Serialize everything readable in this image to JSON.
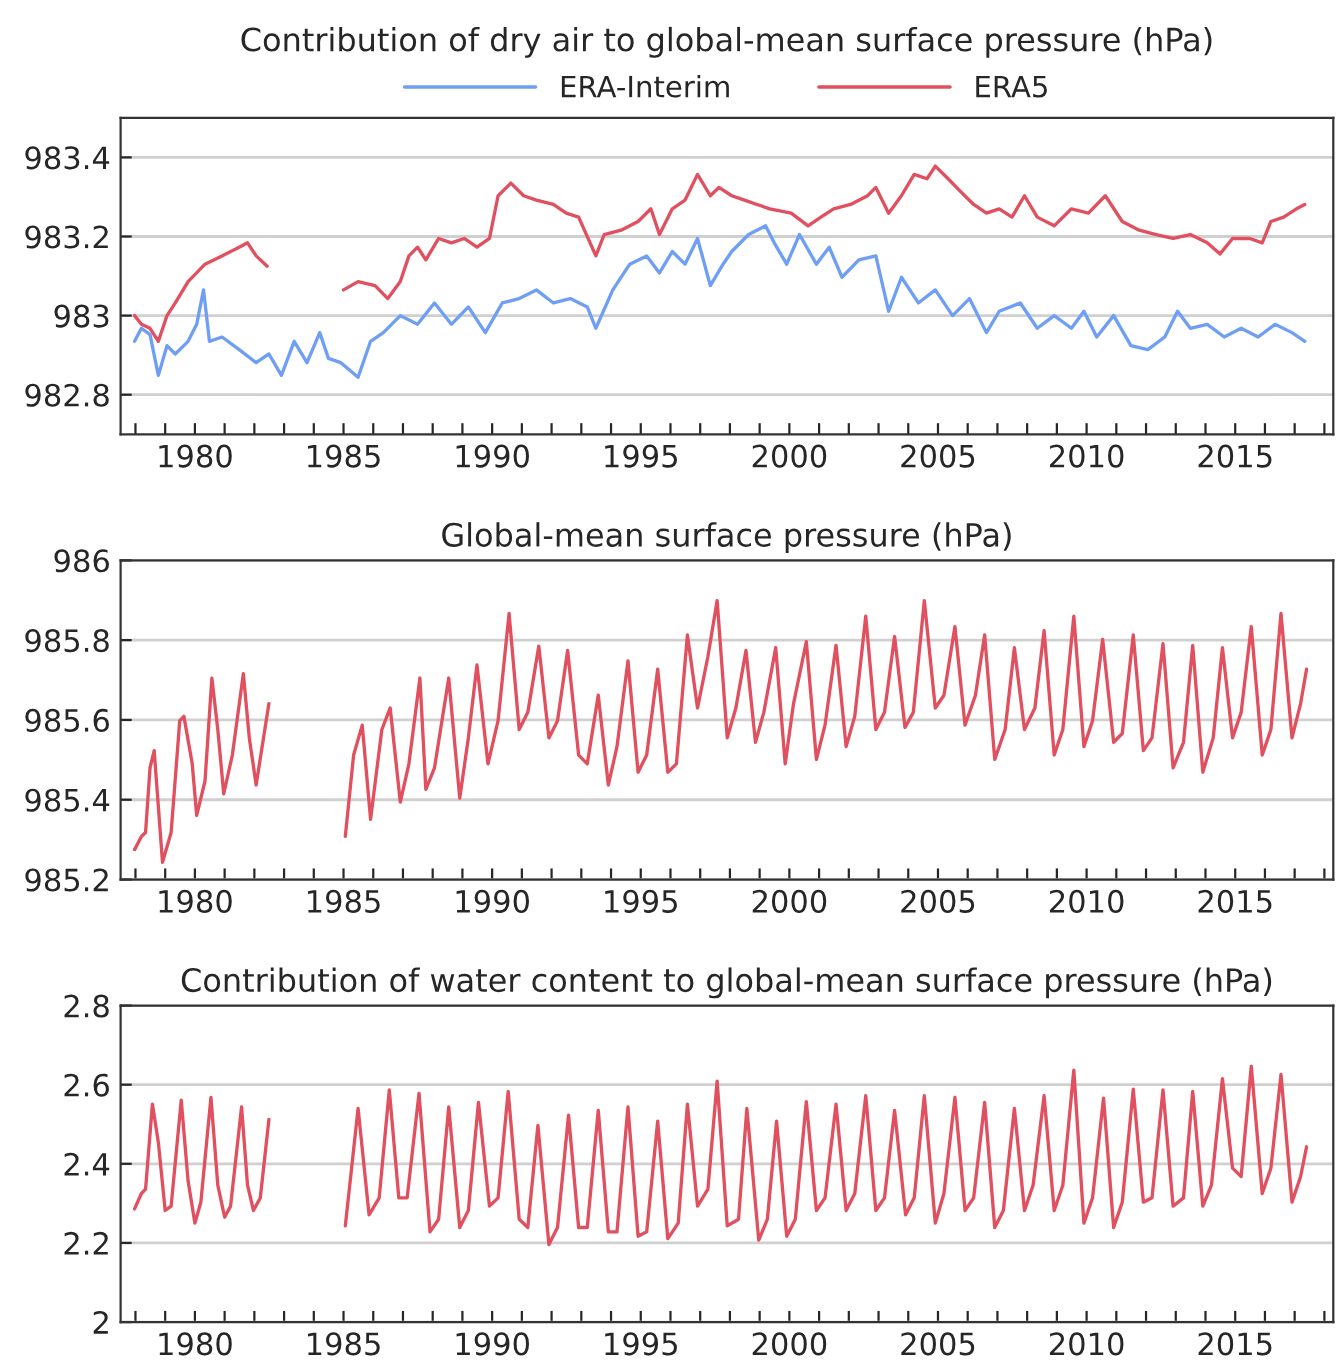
{
  "chart_data": [
    {
      "type": "line",
      "title": "Contribution of dry air to global-mean surface pressure (hPa)",
      "legend": "top",
      "grid": "y",
      "xlim": [
        1977.5,
        2018.3
      ],
      "ylim": [
        982.7,
        983.5
      ],
      "yticks": [
        982.8,
        983,
        983.2,
        983.4
      ],
      "xticks": [
        {
          "value": 1978,
          "label": null
        },
        {
          "value": 1979,
          "label": null
        },
        1980,
        {
          "value": 1981,
          "label": null
        },
        {
          "value": 1982,
          "label": null
        },
        {
          "value": 1983,
          "label": null
        },
        {
          "value": 1984,
          "label": null
        },
        1985,
        {
          "value": 1986,
          "label": null
        },
        {
          "value": 1987,
          "label": null
        },
        {
          "value": 1988,
          "label": null
        },
        {
          "value": 1989,
          "label": null
        },
        1990,
        {
          "value": 1991,
          "label": null
        },
        {
          "value": 1992,
          "label": null
        },
        {
          "value": 1993,
          "label": null
        },
        {
          "value": 1994,
          "label": null
        },
        1995,
        {
          "value": 1996,
          "label": null
        },
        {
          "value": 1997,
          "label": null
        },
        {
          "value": 1998,
          "label": null
        },
        {
          "value": 1999,
          "label": null
        },
        2000,
        {
          "value": 2001,
          "label": null
        },
        {
          "value": 2002,
          "label": null
        },
        {
          "value": 2003,
          "label": null
        },
        {
          "value": 2004,
          "label": null
        },
        2005,
        {
          "value": 2006,
          "label": null
        },
        {
          "value": 2007,
          "label": null
        },
        {
          "value": 2008,
          "label": null
        },
        {
          "value": 2009,
          "label": null
        },
        2010,
        {
          "value": 2011,
          "label": null
        },
        {
          "value": 2012,
          "label": null
        },
        {
          "value": 2013,
          "label": null
        },
        {
          "value": 2014,
          "label": null
        },
        2015,
        {
          "value": 2016,
          "label": null
        },
        {
          "value": 2017,
          "label": null
        },
        {
          "value": 2018,
          "label": null
        }
      ],
      "series": [
        {
          "name": "ERA-Interim",
          "color": "#6f9ff5",
          "x": [
            1977.97,
            1978.2,
            1978.49,
            1978.77,
            1979.06,
            1979.34,
            1979.77,
            1980.06,
            1980.29,
            1980.49,
            1980.91,
            1981.49,
            1982.06,
            1982.49,
            1982.91,
            1983.34,
            1983.77,
            1984.2,
            1984.49,
            1984.91,
            1985.49,
            1985.91,
            1986.34,
            1986.91,
            1987.49,
            1988.06,
            1988.63,
            1989.2,
            1989.77,
            1990.34,
            1990.91,
            1991.49,
            1992.06,
            1992.63,
            1993.2,
            1993.49,
            1994.06,
            1994.63,
            1995.2,
            1995.63,
            1996.06,
            1996.49,
            1996.91,
            1997.34,
            1997.77,
            1998.06,
            1998.63,
            1999.2,
            1999.49,
            1999.91,
            2000.34,
            2000.91,
            2001.34,
            2001.77,
            2002.34,
            2002.91,
            2003.34,
            2003.77,
            2004.34,
            2004.91,
            2005.49,
            2006.06,
            2006.63,
            2007.06,
            2007.77,
            2008.34,
            2008.91,
            2009.49,
            2009.91,
            2010.34,
            2010.91,
            2011.49,
            2012.06,
            2012.63,
            2013.06,
            2013.49,
            2014.06,
            2014.63,
            2015.2,
            2015.77,
            2016.34,
            2016.91,
            2017.34
          ],
          "values": [
            982.935,
            982.968,
            982.952,
            982.849,
            982.924,
            982.903,
            982.935,
            982.978,
            983.065,
            982.935,
            982.946,
            982.914,
            982.881,
            982.903,
            982.849,
            982.935,
            982.881,
            982.957,
            982.892,
            982.881,
            982.844,
            982.935,
            982.957,
            983.0,
            982.978,
            983.032,
            982.978,
            983.022,
            982.957,
            983.032,
            983.043,
            983.065,
            983.032,
            983.043,
            983.022,
            982.968,
            983.065,
            983.13,
            983.151,
            983.108,
            983.162,
            983.13,
            983.195,
            983.076,
            983.13,
            983.162,
            983.205,
            983.227,
            983.184,
            983.13,
            983.205,
            983.13,
            983.173,
            983.097,
            983.141,
            983.151,
            983.011,
            983.097,
            983.032,
            983.065,
            983.0,
            983.043,
            982.957,
            983.011,
            983.032,
            982.968,
            983.0,
            982.968,
            983.011,
            982.946,
            983.0,
            982.924,
            982.914,
            982.946,
            983.011,
            982.968,
            982.978,
            982.946,
            982.968,
            982.946,
            982.978,
            982.957,
            982.935
          ]
        },
        {
          "name": "ERA5",
          "color": "#e0505f",
          "x": [
            1977.97,
            1978.2,
            1978.49,
            1978.77,
            1979.06,
            1979.34,
            1979.77,
            1980.34,
            1980.91,
            1981.49,
            1981.77,
            1982.06,
            1982.43,
            1983.7,
            1985.0,
            1985.49,
            1986.06,
            1986.49,
            1986.91,
            1987.2,
            1987.49,
            1987.77,
            1988.2,
            1988.63,
            1989.06,
            1989.49,
            1989.91,
            1990.2,
            1990.63,
            1991.06,
            1991.49,
            1992.06,
            1992.49,
            1992.91,
            1993.49,
            1993.77,
            1994.34,
            1994.91,
            1995.34,
            1995.63,
            1996.06,
            1996.49,
            1996.91,
            1997.34,
            1997.63,
            1998.06,
            1998.49,
            1998.91,
            1999.34,
            2000.06,
            2000.63,
            2001.06,
            2001.49,
            2002.06,
            2002.63,
            2002.91,
            2003.34,
            2003.77,
            2004.2,
            2004.63,
            2004.91,
            2005.34,
            2005.77,
            2006.2,
            2006.63,
            2007.06,
            2007.49,
            2007.91,
            2008.34,
            2008.91,
            2009.49,
            2010.06,
            2010.63,
            2011.2,
            2011.77,
            2012.34,
            2012.91,
            2013.49,
            2014.06,
            2014.49,
            2014.91,
            2015.49,
            2015.91,
            2016.2,
            2016.63,
            2017.06,
            2017.34
          ],
          "values": [
            983.0,
            982.978,
            982.968,
            982.935,
            983.0,
            983.032,
            983.086,
            983.13,
            983.151,
            983.173,
            983.184,
            983.151,
            983.125,
            null,
            983.065,
            983.086,
            983.076,
            983.043,
            983.086,
            983.151,
            983.173,
            983.141,
            983.195,
            983.184,
            983.195,
            983.173,
            983.195,
            983.303,
            983.335,
            983.303,
            983.292,
            983.281,
            983.259,
            983.249,
            983.151,
            983.205,
            983.216,
            983.238,
            983.27,
            983.205,
            983.27,
            983.292,
            983.357,
            983.303,
            983.324,
            983.303,
            983.292,
            983.281,
            983.27,
            983.259,
            983.227,
            983.249,
            983.27,
            983.281,
            983.303,
            983.324,
            983.259,
            983.303,
            983.357,
            983.346,
            983.378,
            983.346,
            983.313,
            983.281,
            983.259,
            983.27,
            983.249,
            983.303,
            983.249,
            983.227,
            983.27,
            983.259,
            983.303,
            983.238,
            983.216,
            983.205,
            983.195,
            983.205,
            983.184,
            983.156,
            983.195,
            983.195,
            983.184,
            983.238,
            983.249,
            983.27,
            983.281
          ]
        }
      ]
    },
    {
      "type": "line",
      "title": "Global-mean surface pressure (hPa)",
      "grid": "y",
      "xlim": [
        1977.5,
        2018.3
      ],
      "ylim": [
        985.2,
        986
      ],
      "yticks": [
        985.2,
        985.4,
        985.6,
        985.8,
        986
      ],
      "xticks": [
        {
          "value": 1978,
          "label": null
        },
        {
          "value": 1979,
          "label": null
        },
        1980,
        {
          "value": 1981,
          "label": null
        },
        {
          "value": 1982,
          "label": null
        },
        {
          "value": 1983,
          "label": null
        },
        {
          "value": 1984,
          "label": null
        },
        1985,
        {
          "value": 1986,
          "label": null
        },
        {
          "value": 1987,
          "label": null
        },
        {
          "value": 1988,
          "label": null
        },
        {
          "value": 1989,
          "label": null
        },
        1990,
        {
          "value": 1991,
          "label": null
        },
        {
          "value": 1992,
          "label": null
        },
        {
          "value": 1993,
          "label": null
        },
        {
          "value": 1994,
          "label": null
        },
        1995,
        {
          "value": 1996,
          "label": null
        },
        {
          "value": 1997,
          "label": null
        },
        {
          "value": 1998,
          "label": null
        },
        {
          "value": 1999,
          "label": null
        },
        2000,
        {
          "value": 2001,
          "label": null
        },
        {
          "value": 2002,
          "label": null
        },
        {
          "value": 2003,
          "label": null
        },
        {
          "value": 2004,
          "label": null
        },
        2005,
        {
          "value": 2006,
          "label": null
        },
        {
          "value": 2007,
          "label": null
        },
        {
          "value": 2008,
          "label": null
        },
        {
          "value": 2009,
          "label": null
        },
        2010,
        {
          "value": 2011,
          "label": null
        },
        {
          "value": 2012,
          "label": null
        },
        {
          "value": 2013,
          "label": null
        },
        {
          "value": 2014,
          "label": null
        },
        2015,
        {
          "value": 2016,
          "label": null
        },
        {
          "value": 2017,
          "label": null
        },
        {
          "value": 2018,
          "label": null
        }
      ],
      "series": [
        {
          "color": "#e0505f",
          "x": [
            1977.97,
            1978.2,
            1978.34,
            1978.49,
            1978.63,
            1978.77,
            1978.91,
            1979.2,
            1979.49,
            1979.63,
            1979.91,
            1980.06,
            1980.34,
            1980.57,
            1980.77,
            1980.97,
            1981.26,
            1981.63,
            1981.83,
            1982.06,
            1982.49,
            1983.7,
            1985.06,
            1985.34,
            1985.63,
            1985.91,
            1986.29,
            1986.57,
            1986.91,
            1987.2,
            1987.57,
            1987.77,
            1988.06,
            1988.54,
            1988.91,
            1989.2,
            1989.49,
            1989.86,
            1990.2,
            1990.57,
            1990.91,
            1991.2,
            1991.57,
            1991.91,
            1992.2,
            1992.54,
            1992.91,
            1993.2,
            1993.57,
            1993.91,
            1994.2,
            1994.57,
            1994.91,
            1995.2,
            1995.57,
            1995.91,
            1996.2,
            1996.57,
            1996.91,
            1997.26,
            1997.57,
            1997.91,
            1998.2,
            1998.54,
            1998.86,
            1999.14,
            1999.54,
            1999.86,
            2000.14,
            2000.57,
            2000.91,
            2001.2,
            2001.57,
            2001.91,
            2002.2,
            2002.57,
            2002.91,
            2003.2,
            2003.54,
            2003.89,
            2004.17,
            2004.54,
            2004.91,
            2005.2,
            2005.57,
            2005.91,
            2006.26,
            2006.57,
            2006.91,
            2007.26,
            2007.57,
            2007.91,
            2008.26,
            2008.57,
            2008.91,
            2009.2,
            2009.57,
            2009.91,
            2010.2,
            2010.54,
            2010.91,
            2011.2,
            2011.57,
            2011.91,
            2012.2,
            2012.57,
            2012.91,
            2013.26,
            2013.57,
            2013.91,
            2014.26,
            2014.57,
            2014.91,
            2015.2,
            2015.54,
            2015.91,
            2016.2,
            2016.54,
            2016.91,
            2017.2,
            2017.4
          ],
          "values": [
            985.275,
            985.308,
            985.318,
            985.48,
            985.523,
            985.383,
            985.243,
            985.318,
            985.598,
            985.609,
            985.49,
            985.361,
            985.447,
            985.705,
            985.576,
            985.415,
            985.512,
            985.716,
            985.555,
            985.437,
            985.641,
            null,
            985.308,
            985.512,
            985.587,
            985.351,
            985.576,
            985.63,
            985.394,
            985.49,
            985.705,
            985.426,
            985.48,
            985.705,
            985.404,
            985.555,
            985.738,
            985.49,
            985.598,
            985.867,
            985.576,
            985.619,
            985.785,
            985.555,
            985.598,
            985.774,
            985.512,
            985.49,
            985.662,
            985.437,
            985.533,
            985.748,
            985.469,
            985.512,
            985.727,
            985.469,
            985.49,
            985.813,
            985.63,
            985.759,
            985.899,
            985.555,
            985.63,
            985.774,
            985.544,
            985.619,
            985.781,
            985.49,
            985.641,
            985.796,
            985.501,
            985.587,
            985.787,
            985.533,
            985.609,
            985.86,
            985.576,
            985.619,
            985.809,
            985.581,
            985.619,
            985.899,
            985.63,
            985.662,
            985.834,
            985.587,
            985.662,
            985.813,
            985.501,
            985.576,
            985.781,
            985.576,
            985.63,
            985.824,
            985.512,
            985.576,
            985.86,
            985.533,
            985.598,
            985.802,
            985.544,
            985.566,
            985.813,
            985.523,
            985.555,
            985.791,
            985.48,
            985.544,
            985.787,
            985.469,
            985.555,
            985.781,
            985.555,
            985.619,
            985.834,
            985.512,
            985.576,
            985.867,
            985.555,
            985.641,
            985.727
          ]
        }
      ]
    },
    {
      "type": "line",
      "title": "Contribution of water content to global-mean surface pressure (hPa)",
      "grid": "y",
      "xlim": [
        1977.5,
        2018.3
      ],
      "ylim": [
        2,
        2.8
      ],
      "yticks": [
        2,
        2.2,
        2.4,
        2.6,
        2.8
      ],
      "xticks": [
        {
          "value": 1978,
          "label": null
        },
        {
          "value": 1979,
          "label": null
        },
        1980,
        {
          "value": 1981,
          "label": null
        },
        {
          "value": 1982,
          "label": null
        },
        {
          "value": 1983,
          "label": null
        },
        {
          "value": 1984,
          "label": null
        },
        1985,
        {
          "value": 1986,
          "label": null
        },
        {
          "value": 1987,
          "label": null
        },
        {
          "value": 1988,
          "label": null
        },
        {
          "value": 1989,
          "label": null
        },
        1990,
        {
          "value": 1991,
          "label": null
        },
        {
          "value": 1992,
          "label": null
        },
        {
          "value": 1993,
          "label": null
        },
        {
          "value": 1994,
          "label": null
        },
        1995,
        {
          "value": 1996,
          "label": null
        },
        {
          "value": 1997,
          "label": null
        },
        {
          "value": 1998,
          "label": null
        },
        {
          "value": 1999,
          "label": null
        },
        2000,
        {
          "value": 2001,
          "label": null
        },
        {
          "value": 2002,
          "label": null
        },
        {
          "value": 2003,
          "label": null
        },
        {
          "value": 2004,
          "label": null
        },
        2005,
        {
          "value": 2006,
          "label": null
        },
        {
          "value": 2007,
          "label": null
        },
        {
          "value": 2008,
          "label": null
        },
        {
          "value": 2009,
          "label": null
        },
        2010,
        {
          "value": 2011,
          "label": null
        },
        {
          "value": 2012,
          "label": null
        },
        {
          "value": 2013,
          "label": null
        },
        {
          "value": 2014,
          "label": null
        },
        2015,
        {
          "value": 2016,
          "label": null
        },
        {
          "value": 2017,
          "label": null
        },
        {
          "value": 2018,
          "label": null
        }
      ],
      "series": [
        {
          "color": "#e0505f",
          "x": [
            1977.97,
            1978.2,
            1978.34,
            1978.57,
            1978.77,
            1979.0,
            1979.2,
            1979.54,
            1979.77,
            1980.0,
            1980.2,
            1980.54,
            1980.77,
            1981.0,
            1981.2,
            1981.57,
            1981.77,
            1981.97,
            1982.2,
            1982.49,
            1983.7,
            1985.06,
            1985.49,
            1985.86,
            1986.2,
            1986.54,
            1986.86,
            1987.14,
            1987.54,
            1987.91,
            1988.2,
            1988.54,
            1988.91,
            1989.2,
            1989.54,
            1989.91,
            1990.2,
            1990.54,
            1990.91,
            1991.2,
            1991.54,
            1991.91,
            1992.2,
            1992.57,
            1992.91,
            1993.2,
            1993.57,
            1993.91,
            1994.2,
            1994.57,
            1994.91,
            1995.2,
            1995.57,
            1995.91,
            1996.26,
            1996.57,
            1996.91,
            1997.26,
            1997.57,
            1997.91,
            1998.29,
            1998.57,
            1998.97,
            1999.26,
            1999.57,
            1999.91,
            2000.2,
            2000.57,
            2000.91,
            2001.2,
            2001.57,
            2001.91,
            2002.2,
            2002.57,
            2002.91,
            2003.2,
            2003.54,
            2003.91,
            2004.2,
            2004.54,
            2004.91,
            2005.2,
            2005.57,
            2005.91,
            2006.2,
            2006.57,
            2006.91,
            2007.2,
            2007.57,
            2007.91,
            2008.2,
            2008.57,
            2008.91,
            2009.2,
            2009.57,
            2009.91,
            2010.2,
            2010.57,
            2010.91,
            2011.2,
            2011.57,
            2011.91,
            2012.2,
            2012.57,
            2012.91,
            2013.26,
            2013.57,
            2013.91,
            2014.2,
            2014.57,
            2014.91,
            2015.2,
            2015.54,
            2015.91,
            2016.2,
            2016.54,
            2016.91,
            2017.2,
            2017.4
          ],
          "values": [
            2.286,
            2.325,
            2.336,
            2.551,
            2.454,
            2.282,
            2.293,
            2.561,
            2.357,
            2.25,
            2.303,
            2.568,
            2.346,
            2.265,
            2.293,
            2.544,
            2.346,
            2.282,
            2.314,
            2.512,
            null,
            2.243,
            2.54,
            2.271,
            2.314,
            2.587,
            2.314,
            2.314,
            2.578,
            2.228,
            2.26,
            2.544,
            2.239,
            2.282,
            2.555,
            2.293,
            2.314,
            2.583,
            2.26,
            2.239,
            2.497,
            2.196,
            2.239,
            2.523,
            2.239,
            2.239,
            2.535,
            2.228,
            2.228,
            2.544,
            2.217,
            2.228,
            2.508,
            2.211,
            2.25,
            2.551,
            2.293,
            2.336,
            2.609,
            2.243,
            2.26,
            2.54,
            2.207,
            2.26,
            2.508,
            2.217,
            2.26,
            2.557,
            2.282,
            2.314,
            2.551,
            2.282,
            2.325,
            2.572,
            2.282,
            2.314,
            2.535,
            2.271,
            2.314,
            2.572,
            2.25,
            2.325,
            2.568,
            2.282,
            2.314,
            2.555,
            2.239,
            2.282,
            2.54,
            2.282,
            2.346,
            2.572,
            2.282,
            2.346,
            2.637,
            2.25,
            2.314,
            2.566,
            2.239,
            2.303,
            2.589,
            2.303,
            2.314,
            2.587,
            2.293,
            2.314,
            2.583,
            2.293,
            2.346,
            2.615,
            2.389,
            2.368,
            2.647,
            2.325,
            2.389,
            2.626,
            2.303,
            2.368,
            2.443
          ]
        }
      ]
    }
  ]
}
